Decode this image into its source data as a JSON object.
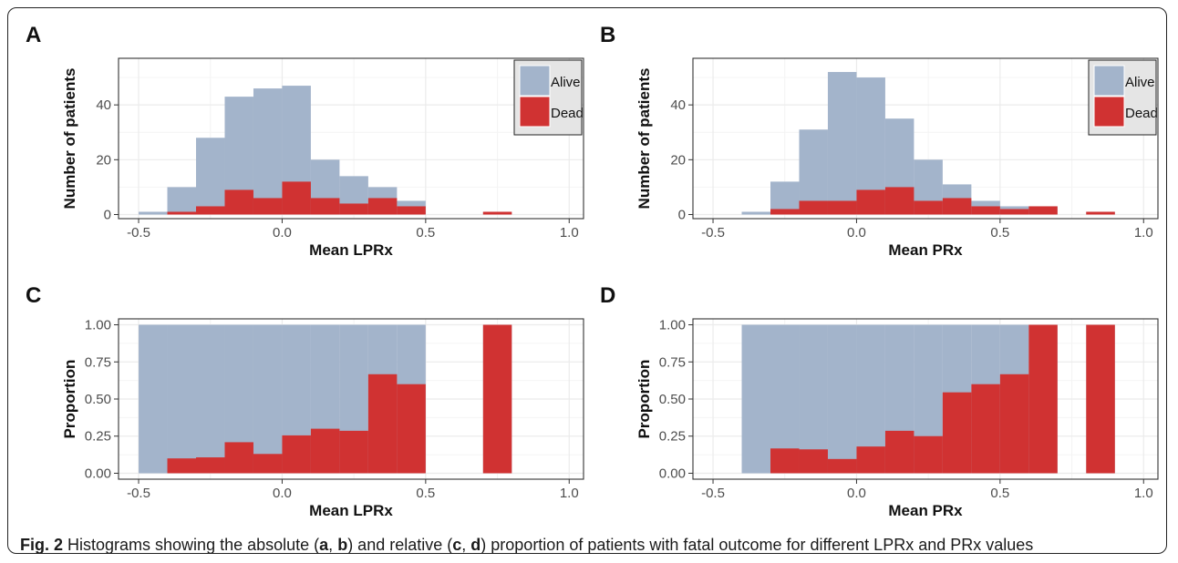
{
  "figure": {
    "caption": {
      "label": "Fig. 2",
      "part1": " Histograms showing the absolute (",
      "a": "a",
      "sep1": ", ",
      "b": "b",
      "part2": ") and relative (",
      "c": "c",
      "sep2": ", ",
      "d": "d",
      "part3": ") proportion of patients with fatal outcome for different LPRx and PRx values"
    }
  },
  "colors": {
    "alive": "#a3b4cb",
    "dead": "#d03232",
    "grid_major": "#ebebeb",
    "grid_minor": "#f4f4f4",
    "legend_bg": "#e5e5e5"
  },
  "chart_data": [
    {
      "panel": "A",
      "type": "bar",
      "subtype": "histogram-stacked",
      "xlabel": "Mean LPRx",
      "ylabel": "Number of patients",
      "xlim": [
        -0.57,
        1.05
      ],
      "ylim": [
        -1.5,
        57
      ],
      "xticks": [
        -0.5,
        0.0,
        0.5,
        1.0
      ],
      "xtick_labels": [
        "-0.5",
        "0.0",
        "0.5",
        "1.0"
      ],
      "yticks": [
        0,
        20,
        40
      ],
      "ytick_labels": [
        "0",
        "20",
        "40"
      ],
      "grid": true,
      "legend": {
        "position": "top-right",
        "entries": [
          "Alive",
          "Dead"
        ]
      },
      "bin_edges": [
        -0.5,
        -0.4,
        -0.3,
        -0.2,
        -0.1,
        0.0,
        0.1,
        0.2,
        0.3,
        0.4,
        0.5,
        0.6,
        0.7,
        0.8,
        0.9,
        1.0
      ],
      "series": [
        {
          "name": "Alive",
          "values": [
            1,
            10,
            28,
            43,
            46,
            47,
            20,
            14,
            10,
            5,
            0,
            0,
            1,
            0,
            0
          ]
        },
        {
          "name": "Dead",
          "values": [
            0,
            1,
            3,
            9,
            6,
            12,
            6,
            4,
            6,
            3,
            0,
            0,
            1,
            0,
            0
          ]
        }
      ]
    },
    {
      "panel": "B",
      "type": "bar",
      "subtype": "histogram-stacked",
      "xlabel": "Mean PRx",
      "ylabel": "Number of patients",
      "xlim": [
        -0.57,
        1.05
      ],
      "ylim": [
        -1.5,
        57
      ],
      "xticks": [
        -0.5,
        0.0,
        0.5,
        1.0
      ],
      "xtick_labels": [
        "-0.5",
        "0.0",
        "0.5",
        "1.0"
      ],
      "yticks": [
        0,
        20,
        40
      ],
      "ytick_labels": [
        "0",
        "20",
        "40"
      ],
      "grid": true,
      "legend": {
        "position": "top-right",
        "entries": [
          "Alive",
          "Dead"
        ]
      },
      "bin_edges": [
        -0.5,
        -0.4,
        -0.3,
        -0.2,
        -0.1,
        0.0,
        0.1,
        0.2,
        0.3,
        0.4,
        0.5,
        0.6,
        0.7,
        0.8,
        0.9,
        1.0
      ],
      "series": [
        {
          "name": "Alive",
          "values": [
            0,
            1,
            12,
            31,
            52,
            50,
            35,
            20,
            11,
            5,
            3,
            3,
            0,
            1,
            0
          ]
        },
        {
          "name": "Dead",
          "values": [
            0,
            0,
            2,
            5,
            5,
            9,
            10,
            5,
            6,
            3,
            2,
            3,
            0,
            1,
            0
          ]
        }
      ]
    },
    {
      "panel": "C",
      "type": "bar",
      "subtype": "proportion-stacked",
      "xlabel": "Mean LPRx",
      "ylabel": "Proportion",
      "xlim": [
        -0.57,
        1.05
      ],
      "ylim": [
        -0.04,
        1.04
      ],
      "xticks": [
        -0.5,
        0.0,
        0.5,
        1.0
      ],
      "xtick_labels": [
        "-0.5",
        "0.0",
        "0.5",
        "1.0"
      ],
      "yticks": [
        0,
        0.25,
        0.5,
        0.75,
        1.0
      ],
      "ytick_labels": [
        "0.00",
        "0.25",
        "0.50",
        "0.75",
        "1.00"
      ],
      "grid": true,
      "bin_edges": [
        -0.5,
        -0.4,
        -0.3,
        -0.2,
        -0.1,
        0.0,
        0.1,
        0.2,
        0.3,
        0.4,
        0.5,
        0.6,
        0.7,
        0.8,
        0.9,
        1.0
      ],
      "series": [
        {
          "name": "Alive",
          "values": [
            1.0,
            1.0,
            1.0,
            1.0,
            1.0,
            1.0,
            1.0,
            1.0,
            1.0,
            1.0,
            0,
            0,
            1.0,
            0,
            0
          ]
        },
        {
          "name": "Dead",
          "values": [
            0,
            0.1,
            0.107,
            0.209,
            0.13,
            0.255,
            0.3,
            0.286,
            0.667,
            0.6,
            0,
            0,
            1.0,
            0,
            0
          ]
        }
      ]
    },
    {
      "panel": "D",
      "type": "bar",
      "subtype": "proportion-stacked",
      "xlabel": "Mean PRx",
      "ylabel": "Proportion",
      "xlim": [
        -0.57,
        1.05
      ],
      "ylim": [
        -0.04,
        1.04
      ],
      "xticks": [
        -0.5,
        0.0,
        0.5,
        1.0
      ],
      "xtick_labels": [
        "-0.5",
        "0.0",
        "0.5",
        "1.0"
      ],
      "yticks": [
        0,
        0.25,
        0.5,
        0.75,
        1.0
      ],
      "ytick_labels": [
        "0.00",
        "0.25",
        "0.50",
        "0.75",
        "1.00"
      ],
      "grid": true,
      "bin_edges": [
        -0.5,
        -0.4,
        -0.3,
        -0.2,
        -0.1,
        0.0,
        0.1,
        0.2,
        0.3,
        0.4,
        0.5,
        0.6,
        0.7,
        0.8,
        0.9,
        1.0
      ],
      "series": [
        {
          "name": "Alive",
          "values": [
            0,
            1.0,
            1.0,
            1.0,
            1.0,
            1.0,
            1.0,
            1.0,
            1.0,
            1.0,
            1.0,
            1.0,
            0,
            1.0,
            0
          ]
        },
        {
          "name": "Dead",
          "values": [
            0,
            0,
            0.167,
            0.161,
            0.096,
            0.18,
            0.286,
            0.25,
            0.545,
            0.6,
            0.667,
            1.0,
            0,
            1.0,
            0
          ]
        }
      ]
    }
  ]
}
